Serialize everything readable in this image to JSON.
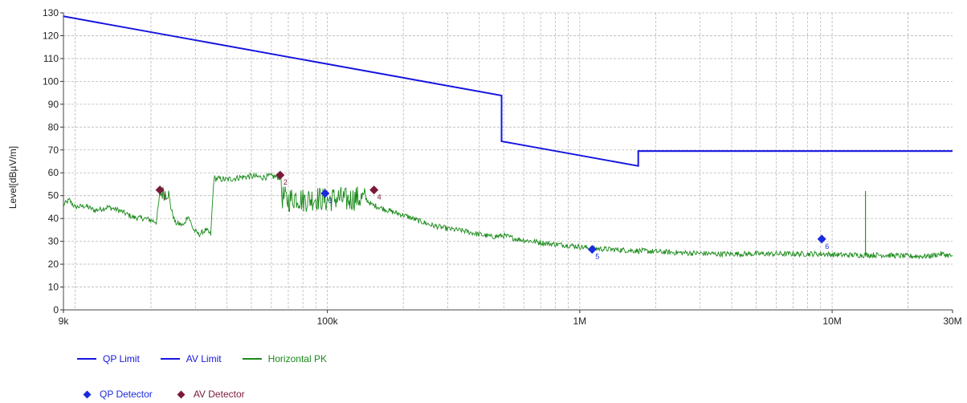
{
  "chart_data": {
    "type": "line",
    "xscale": "log",
    "xlim": [
      9000,
      30000000
    ],
    "ylim": [
      0,
      130
    ],
    "xlabel": "Frequency[Hz]",
    "ylabel": "Level[dBµV/m]",
    "grid": true,
    "legend_position": "bottom-left",
    "x_tick_labels": [
      {
        "x": 9000,
        "label": "9k"
      },
      {
        "x": 100000,
        "label": "100k"
      },
      {
        "x": 1000000,
        "label": "1M"
      },
      {
        "x": 10000000,
        "label": "10M"
      },
      {
        "x": 30000000,
        "label": "30M"
      }
    ],
    "y_ticks": [
      0,
      10,
      20,
      30,
      40,
      50,
      60,
      70,
      80,
      90,
      100,
      110,
      120,
      130
    ],
    "series": [
      {
        "name": "QP Limit",
        "color": "#1515e0",
        "points": [
          [
            9000,
            128.5
          ],
          [
            490000,
            93.8
          ],
          [
            490000,
            73.8
          ],
          [
            1705000,
            63.0
          ],
          [
            1705000,
            69.5
          ],
          [
            30000000,
            69.5
          ]
        ]
      },
      {
        "name": "AV Limit",
        "color": "#1515e0",
        "points": [
          [
            9000,
            128.5
          ],
          [
            490000,
            93.8
          ],
          [
            490000,
            73.8
          ],
          [
            1705000,
            63.0
          ],
          [
            1705000,
            69.5
          ],
          [
            30000000,
            69.5
          ]
        ]
      },
      {
        "name": "Horizontal PK",
        "color": "#1a8a1a",
        "points": [
          [
            9000,
            46.0
          ],
          [
            9500,
            48.0
          ],
          [
            10000,
            45.0
          ],
          [
            11000,
            45.5
          ],
          [
            12000,
            43.5
          ],
          [
            13500,
            45.0
          ],
          [
            15000,
            43.5
          ],
          [
            17000,
            40.5
          ],
          [
            19000,
            40.0
          ],
          [
            21000,
            38.5
          ],
          [
            21700,
            51.0
          ],
          [
            23500,
            51.5
          ],
          [
            24000,
            44.5
          ],
          [
            25000,
            38.0
          ],
          [
            27000,
            37.0
          ],
          [
            28000,
            41.5
          ],
          [
            29500,
            35.0
          ],
          [
            31000,
            33.0
          ],
          [
            33000,
            35.0
          ],
          [
            34500,
            33.0
          ],
          [
            35500,
            57.5
          ],
          [
            40000,
            57.0
          ],
          [
            45000,
            58.0
          ],
          [
            50000,
            58.5
          ],
          [
            55000,
            58.0
          ],
          [
            60000,
            58.5
          ],
          [
            65500,
            58.0
          ],
          [
            66000,
            49.5
          ],
          [
            70000,
            48.0
          ],
          [
            75000,
            49.5
          ],
          [
            80000,
            48.0
          ],
          [
            90000,
            49.0
          ],
          [
            100000,
            48.0
          ],
          [
            110000,
            49.0
          ],
          [
            120000,
            48.0
          ],
          [
            130000,
            49.0
          ],
          [
            142000,
            48.5
          ],
          [
            150000,
            46.0
          ],
          [
            160000,
            45.0
          ],
          [
            180000,
            43.0
          ],
          [
            200000,
            41.5
          ],
          [
            230000,
            39.0
          ],
          [
            260000,
            37.0
          ],
          [
            300000,
            35.5
          ],
          [
            350000,
            34.5
          ],
          [
            400000,
            33.0
          ],
          [
            450000,
            32.0
          ],
          [
            500000,
            32.5
          ],
          [
            560000,
            31.0
          ],
          [
            650000,
            30.0
          ],
          [
            750000,
            29.0
          ],
          [
            850000,
            28.5
          ],
          [
            950000,
            28.0
          ],
          [
            1100000,
            27.0
          ],
          [
            1300000,
            26.5
          ],
          [
            1600000,
            26.0
          ],
          [
            2000000,
            25.5
          ],
          [
            2500000,
            25.0
          ],
          [
            3500000,
            24.5
          ],
          [
            5000000,
            24.5
          ],
          [
            7000000,
            24.5
          ],
          [
            9000000,
            24.5
          ],
          [
            11000000,
            24.0
          ],
          [
            12800000,
            24.0
          ],
          [
            13200000,
            24.0
          ],
          [
            16000000,
            24.0
          ],
          [
            20000000,
            23.5
          ],
          [
            24000000,
            23.5
          ],
          [
            27000000,
            24.5
          ],
          [
            30000000,
            23.5
          ]
        ]
      }
    ],
    "spikes": [
      {
        "x": 13560000,
        "y": 52.0,
        "series": "Horizontal PK"
      }
    ],
    "markers": [
      {
        "series": "AV Detector",
        "label": "1",
        "x": 21700,
        "y": 52.5
      },
      {
        "series": "AV Detector",
        "label": "2",
        "x": 65000,
        "y": 59.0
      },
      {
        "series": "QP Detector",
        "label": "3",
        "x": 98000,
        "y": 51.0
      },
      {
        "series": "AV Detector",
        "label": "4",
        "x": 153000,
        "y": 52.5
      },
      {
        "series": "QP Detector",
        "label": "5",
        "x": 1120000,
        "y": 26.5
      },
      {
        "series": "QP Detector",
        "label": "6",
        "x": 9100000,
        "y": 31.0
      }
    ],
    "marker_series": [
      {
        "name": "QP Detector",
        "color": "#1a2ae0"
      },
      {
        "name": "AV Detector",
        "color": "#7a1a3a"
      }
    ]
  },
  "legend": {
    "items": [
      {
        "label": "QP Limit",
        "color": "#1515e0"
      },
      {
        "label": "AV Limit",
        "color": "#1515e0"
      },
      {
        "label": "Horizontal PK",
        "color": "#1a8a1a"
      }
    ],
    "detectors": [
      {
        "label": "QP Detector",
        "color": "#1a2ae0"
      },
      {
        "label": "AV Detector",
        "color": "#7a1a3a"
      }
    ]
  }
}
